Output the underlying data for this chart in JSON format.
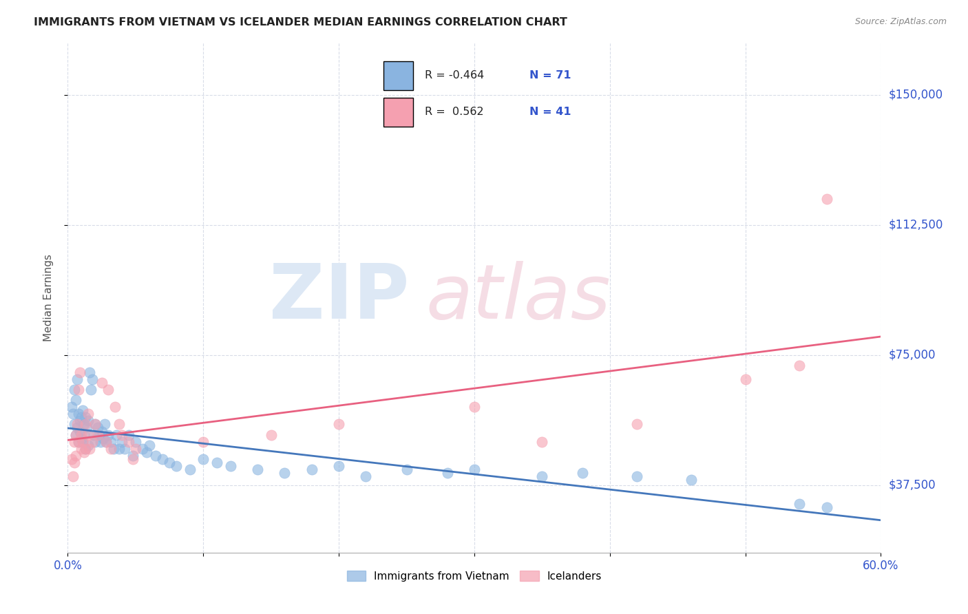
{
  "title": "IMMIGRANTS FROM VIETNAM VS ICELANDER MEDIAN EARNINGS CORRELATION CHART",
  "source": "Source: ZipAtlas.com",
  "ylabel": "Median Earnings",
  "yticks": [
    37500,
    75000,
    112500,
    150000
  ],
  "ytick_labels": [
    "$37,500",
    "$75,000",
    "$112,500",
    "$150,000"
  ],
  "xmin": 0.0,
  "xmax": 0.6,
  "ymin": 18000,
  "ymax": 165000,
  "legend_r_vietnam": "-0.464",
  "legend_n_vietnam": "71",
  "legend_r_icelander": "0.562",
  "legend_n_icelander": "41",
  "blue_color": "#8ab4e0",
  "pink_color": "#f5a0b0",
  "blue_line_color": "#4477bb",
  "pink_line_color": "#e86080",
  "text_blue": "#3355cc",
  "grid_color": "#d8dce8",
  "title_color": "#222222",
  "source_color": "#888888",
  "ylabel_color": "#555555"
}
